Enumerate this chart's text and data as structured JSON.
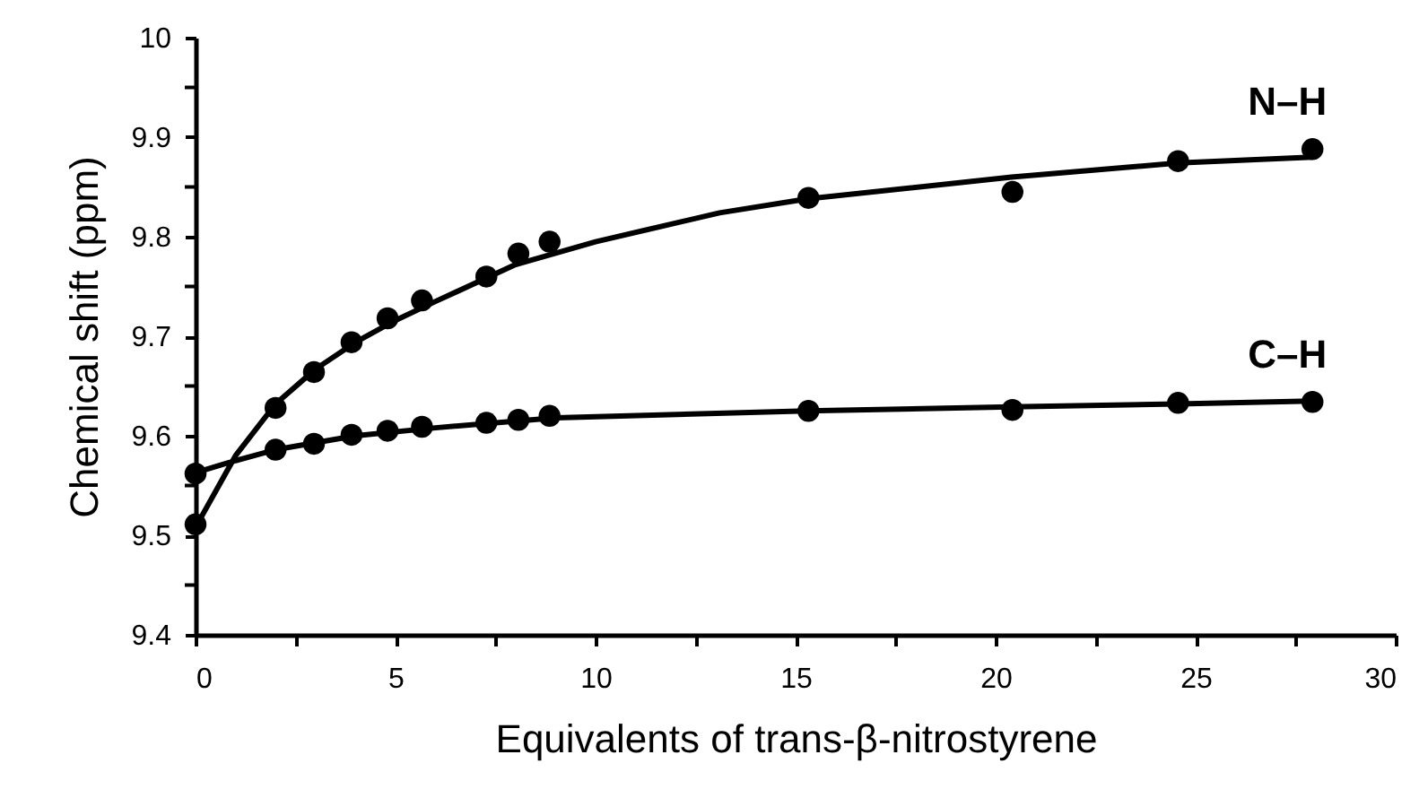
{
  "chart_data": {
    "type": "scatter",
    "xlabel": "Equivalents of trans-β-nitrostyrene",
    "ylabel": "Chemical shift (ppm)",
    "xlim": [
      0,
      30
    ],
    "ylim": [
      9.4,
      10
    ],
    "xticks": [
      0,
      {
        "value": 2.5,
        "label": null
      },
      5,
      {
        "value": 7.5,
        "label": null
      },
      10,
      {
        "value": 12.5,
        "label": null
      },
      15,
      {
        "value": 17.5,
        "label": null
      },
      20,
      {
        "value": 22.5,
        "label": null
      },
      25,
      {
        "value": 27.5,
        "label": null
      },
      30
    ],
    "yticks": [
      9.4,
      {
        "value": 9.45,
        "label": null
      },
      9.5,
      {
        "value": 9.55,
        "label": null
      },
      9.6,
      {
        "value": 9.65,
        "label": null
      },
      9.7,
      {
        "value": 9.75,
        "label": null
      },
      9.8,
      {
        "value": 9.85,
        "label": null
      },
      9.9,
      {
        "value": 9.95,
        "label": null
      },
      10
    ],
    "grid": false,
    "legend": false,
    "marker": "circle",
    "series": [
      {
        "type": "line",
        "color": "#000000",
        "marker": "none",
        "x": [
          0,
          1,
          2,
          3,
          4,
          5,
          6,
          8,
          10,
          13.1,
          15.3,
          20.4,
          24.56,
          27.92
        ],
        "values": [
          9.508,
          9.58,
          9.632,
          9.667,
          9.694,
          9.716,
          9.735,
          9.772,
          9.795,
          9.824,
          9.838,
          9.86,
          9.874,
          9.88
        ]
      },
      {
        "type": "line",
        "color": "#000000",
        "marker": "none",
        "x": [
          0,
          1,
          2,
          4,
          6,
          9,
          15.3,
          20.4,
          24.56,
          27.92
        ],
        "values": [
          9.563,
          9.575,
          9.586,
          9.6,
          9.608,
          9.618,
          9.625,
          9.629,
          9.632,
          9.635
        ]
      },
      {
        "type": "scatter",
        "name": "N–H",
        "color": "#000000",
        "x": [
          0,
          2,
          2.96,
          3.9,
          4.8,
          5.66,
          7.27,
          8.07,
          8.85,
          15.32,
          20.42,
          24.56,
          27.92
        ],
        "values": [
          9.511,
          9.628,
          9.664,
          9.694,
          9.718,
          9.736,
          9.76,
          9.783,
          9.795,
          9.839,
          9.845,
          9.876,
          9.888
        ]
      },
      {
        "type": "scatter",
        "name": "C–H",
        "color": "#000000",
        "x": [
          0,
          2,
          2.96,
          3.9,
          4.8,
          5.66,
          7.27,
          8.07,
          8.85,
          15.32,
          20.42,
          24.56,
          27.92
        ],
        "values": [
          9.562,
          9.586,
          9.592,
          9.601,
          9.605,
          9.609,
          9.613,
          9.616,
          9.62,
          9.625,
          9.626,
          9.633,
          9.634
        ]
      }
    ]
  }
}
